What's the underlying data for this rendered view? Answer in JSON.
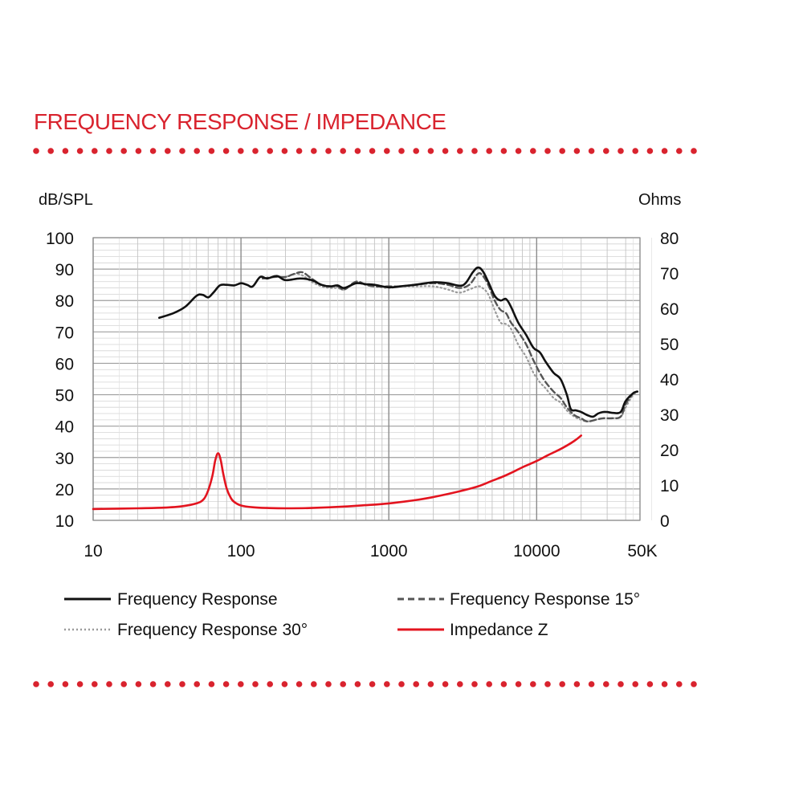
{
  "header": {
    "title": "FREQUENCY RESPONSE / IMPEDANCE"
  },
  "colors": {
    "accent": "#d9232e",
    "grid": "#bdbdbd",
    "fr": "#111111",
    "fr15": "#555555",
    "fr30": "#9a9a9a",
    "impedance": "#e3141f"
  },
  "chart_data": {
    "type": "line",
    "title": "FREQUENCY RESPONSE / IMPEDANCE",
    "x_scale": "log",
    "xlim": [
      10,
      50000
    ],
    "x_ticks": [
      10,
      100,
      1000,
      10000,
      50000
    ],
    "x_tick_labels": [
      "10",
      "100",
      "1000",
      "10000",
      "50K"
    ],
    "y_left": {
      "label": "dB/SPL",
      "ylim": [
        10,
        100
      ],
      "ticks": [
        "100",
        "90",
        "80",
        "70",
        "60",
        "50",
        "40",
        "30",
        "20",
        "10"
      ]
    },
    "y_right": {
      "label": "Ohms",
      "ylim": [
        0,
        80
      ],
      "ticks": [
        "80",
        "70",
        "60",
        "50",
        "40",
        "30",
        "20",
        "10",
        "0"
      ]
    },
    "grid": true,
    "legend_position": "bottom",
    "series": [
      {
        "name": "Frequency Response",
        "axis": "left",
        "style": "solid",
        "color": "#111111",
        "points": [
          [
            28,
            74.5
          ],
          [
            35,
            76
          ],
          [
            42,
            78
          ],
          [
            50,
            81.5
          ],
          [
            55,
            81.8
          ],
          [
            60,
            81
          ],
          [
            65,
            82.5
          ],
          [
            72,
            84.8
          ],
          [
            80,
            85
          ],
          [
            90,
            84.8
          ],
          [
            100,
            85.5
          ],
          [
            110,
            85
          ],
          [
            120,
            84.5
          ],
          [
            135,
            87.5
          ],
          [
            150,
            87
          ],
          [
            175,
            87.8
          ],
          [
            200,
            86.5
          ],
          [
            250,
            87
          ],
          [
            300,
            86.5
          ],
          [
            350,
            85
          ],
          [
            400,
            84.5
          ],
          [
            450,
            84.8
          ],
          [
            500,
            84
          ],
          [
            600,
            85.5
          ],
          [
            700,
            85.2
          ],
          [
            800,
            85
          ],
          [
            1000,
            84.2
          ],
          [
            1200,
            84.5
          ],
          [
            1500,
            85
          ],
          [
            2000,
            85.8
          ],
          [
            2500,
            85.5
          ],
          [
            3000,
            84.7
          ],
          [
            3300,
            85.5
          ],
          [
            3700,
            89
          ],
          [
            4000,
            90.5
          ],
          [
            4300,
            89.5
          ],
          [
            4700,
            86
          ],
          [
            5200,
            81.5
          ],
          [
            5700,
            80
          ],
          [
            6200,
            80.5
          ],
          [
            6700,
            78
          ],
          [
            7500,
            73
          ],
          [
            8500,
            69
          ],
          [
            9500,
            65
          ],
          [
            10500,
            63.5
          ],
          [
            11500,
            60.5
          ],
          [
            13000,
            57
          ],
          [
            14500,
            55
          ],
          [
            16000,
            50
          ],
          [
            17000,
            45.5
          ],
          [
            18500,
            45
          ],
          [
            20000,
            44.5
          ],
          [
            22000,
            43.5
          ],
          [
            24000,
            43
          ],
          [
            26000,
            44
          ],
          [
            28000,
            44.5
          ],
          [
            30000,
            44.5
          ],
          [
            33000,
            44.2
          ],
          [
            37000,
            44.5
          ],
          [
            40000,
            48
          ],
          [
            45000,
            50.5
          ],
          [
            48000,
            51
          ]
        ]
      },
      {
        "name": "Frequency Response 15°",
        "axis": "left",
        "style": "dashed",
        "color": "#555555",
        "points": [
          [
            140,
            87
          ],
          [
            170,
            87.5
          ],
          [
            200,
            87.5
          ],
          [
            230,
            88.5
          ],
          [
            260,
            89
          ],
          [
            300,
            87
          ],
          [
            350,
            85
          ],
          [
            400,
            84.5
          ],
          [
            450,
            84.5
          ],
          [
            500,
            83.5
          ],
          [
            600,
            86
          ],
          [
            700,
            85
          ],
          [
            800,
            84.5
          ],
          [
            1000,
            84.5
          ],
          [
            1200,
            84.5
          ],
          [
            1500,
            85
          ],
          [
            2000,
            85.5
          ],
          [
            2500,
            85
          ],
          [
            3000,
            84
          ],
          [
            3500,
            85
          ],
          [
            4000,
            88.5
          ],
          [
            4300,
            88
          ],
          [
            4700,
            85
          ],
          [
            5200,
            80
          ],
          [
            5700,
            77
          ],
          [
            6200,
            76
          ],
          [
            6700,
            73
          ],
          [
            7500,
            70
          ],
          [
            8500,
            66
          ],
          [
            9500,
            61
          ],
          [
            10500,
            57
          ],
          [
            11500,
            54
          ],
          [
            13000,
            51
          ],
          [
            14500,
            49
          ],
          [
            16000,
            46
          ],
          [
            18000,
            43.5
          ],
          [
            20000,
            42.5
          ],
          [
            22000,
            41.5
          ],
          [
            25000,
            42
          ],
          [
            28000,
            42.5
          ],
          [
            32000,
            42.5
          ],
          [
            37000,
            43
          ],
          [
            40000,
            47
          ],
          [
            45000,
            50.5
          ],
          [
            48000,
            51
          ]
        ]
      },
      {
        "name": "Frequency Response 30°",
        "axis": "left",
        "style": "dotted",
        "color": "#9a9a9a",
        "points": [
          [
            140,
            87
          ],
          [
            170,
            87.5
          ],
          [
            200,
            87.5
          ],
          [
            230,
            88.5
          ],
          [
            260,
            88
          ],
          [
            300,
            86
          ],
          [
            350,
            84.5
          ],
          [
            400,
            84
          ],
          [
            450,
            84
          ],
          [
            500,
            83.5
          ],
          [
            600,
            85.5
          ],
          [
            700,
            85
          ],
          [
            800,
            84.5
          ],
          [
            1000,
            84
          ],
          [
            1200,
            84.5
          ],
          [
            1500,
            84.5
          ],
          [
            2000,
            84.5
          ],
          [
            2500,
            83.5
          ],
          [
            3000,
            82.5
          ],
          [
            3500,
            83.5
          ],
          [
            4000,
            84.5
          ],
          [
            4300,
            84
          ],
          [
            4700,
            82
          ],
          [
            5200,
            77
          ],
          [
            5700,
            73
          ],
          [
            6200,
            72.5
          ],
          [
            6700,
            71
          ],
          [
            7500,
            66
          ],
          [
            8500,
            62
          ],
          [
            9500,
            57
          ],
          [
            10500,
            54
          ],
          [
            11500,
            52
          ],
          [
            13000,
            49
          ],
          [
            14500,
            47.5
          ],
          [
            16000,
            45
          ],
          [
            18000,
            43
          ],
          [
            20000,
            42
          ],
          [
            22000,
            41.5
          ],
          [
            25000,
            42
          ],
          [
            28000,
            42.5
          ],
          [
            32000,
            42.5
          ],
          [
            37000,
            43
          ],
          [
            40000,
            46
          ],
          [
            45000,
            50
          ],
          [
            48000,
            50.5
          ]
        ]
      },
      {
        "name": "Impedance Z",
        "axis": "right",
        "style": "solid",
        "color": "#e3141f",
        "points": [
          [
            10,
            3.2
          ],
          [
            20,
            3.4
          ],
          [
            30,
            3.6
          ],
          [
            40,
            4
          ],
          [
            50,
            4.8
          ],
          [
            56,
            6
          ],
          [
            60,
            8.5
          ],
          [
            64,
            12.5
          ],
          [
            67,
            17
          ],
          [
            70,
            19
          ],
          [
            73,
            17
          ],
          [
            76,
            13
          ],
          [
            80,
            9
          ],
          [
            85,
            6.5
          ],
          [
            90,
            5.2
          ],
          [
            100,
            4.2
          ],
          [
            120,
            3.7
          ],
          [
            150,
            3.5
          ],
          [
            200,
            3.4
          ],
          [
            300,
            3.5
          ],
          [
            500,
            3.9
          ],
          [
            700,
            4.3
          ],
          [
            1000,
            4.8
          ],
          [
            1500,
            5.7
          ],
          [
            2000,
            6.6
          ],
          [
            3000,
            8.2
          ],
          [
            4000,
            9.6
          ],
          [
            5000,
            11.2
          ],
          [
            6000,
            12.5
          ],
          [
            7000,
            13.8
          ],
          [
            8000,
            15
          ],
          [
            10000,
            16.8
          ],
          [
            12000,
            18.5
          ],
          [
            15000,
            20.5
          ],
          [
            18000,
            22.5
          ],
          [
            20000,
            24
          ]
        ]
      }
    ]
  }
}
